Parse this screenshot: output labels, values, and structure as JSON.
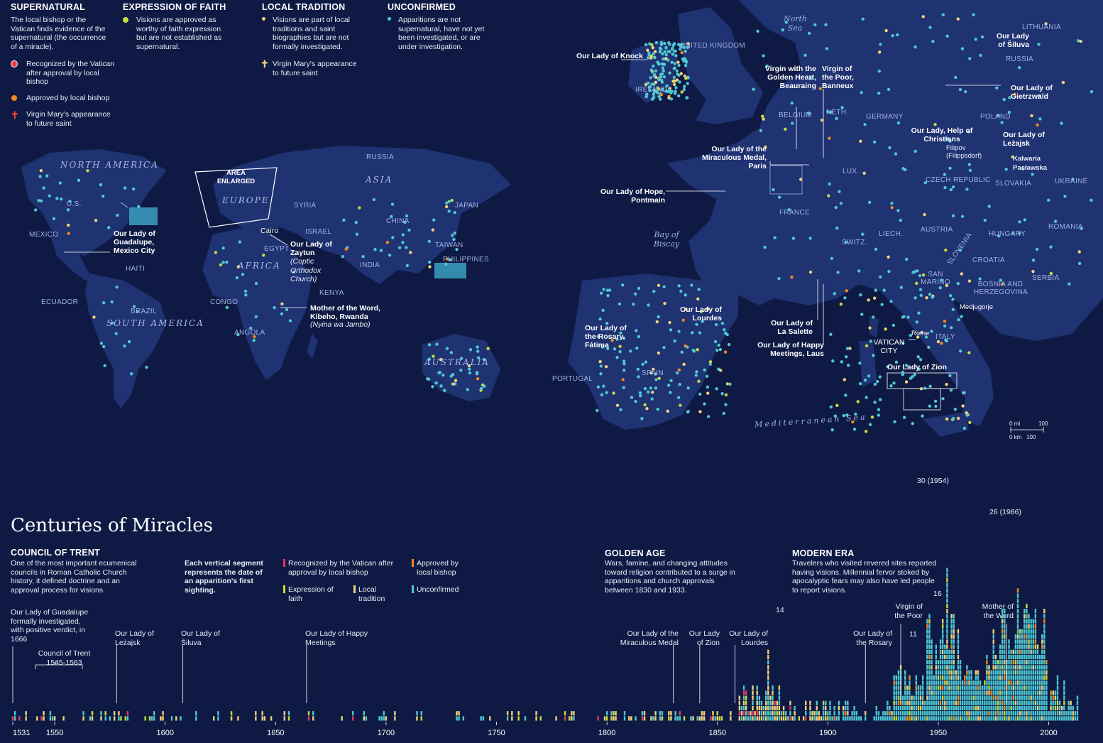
{
  "legend": {
    "supernatural": {
      "heading": "SUPERNATURAL",
      "desc": "The local bishop or the Vatican finds evidence of the supernatural (the occurrence of a miracle).",
      "items": [
        {
          "label": "Recognized by the Vatican after approval by local bishop",
          "color": "#e8403a"
        },
        {
          "label": "Approved by local bishop",
          "color": "#f08a24"
        },
        {
          "label": "Virgin Mary's appearance to future saint",
          "color": "#e8403a"
        }
      ]
    },
    "faith": {
      "heading": "EXPRESSION OF FAITH",
      "desc": "Visions are approved as worthy of faith expression but are not established as supernatural.",
      "color": "#c8dc3a"
    },
    "tradition": {
      "heading": "LOCAL TRADITION",
      "desc": "Visions are part of local traditions and saint biographies but are not formally investigated.",
      "color": "#f3d27a",
      "saint_label": "Virgin Mary's appearance to future saint"
    },
    "unconfirmed": {
      "heading": "UNCONFIRMED",
      "desc": "Apparitions are not supernatural, have not yet been investigated, or are under investigation.",
      "color": "#4ec9d0"
    }
  },
  "world_map": {
    "continents": [
      "NORTH AMERICA",
      "SOUTH AMERICA",
      "EUROPE",
      "AFRICA",
      "ASIA",
      "AUSTRALIA"
    ],
    "area_label": "AREA ENLARGED",
    "countries": [
      "RUSSIA",
      "U.S.",
      "MEXICO",
      "HAITI",
      "ECUADOR",
      "BRAZIL",
      "CONGO",
      "ANGOLA",
      "KENYA",
      "EGYPT",
      "SYRIA",
      "ISRAEL",
      "Cairo",
      "INDIA",
      "CHINA",
      "JAPAN",
      "TAIWAN",
      "PHILIPPINES"
    ],
    "callouts": {
      "guadalupe": "Our Lady of Guadalupe, Mexico City",
      "zaytun": "Our Lady of Zaytun",
      "zaytun_note": "(Coptic Orthodox Church)",
      "kibeho": "Mother of the Word, Kibeho, Rwanda",
      "kibeho_note": "(Nyina wa Jambo)"
    }
  },
  "europe_map": {
    "seas": [
      "North Sea",
      "Bay of Biscay",
      "Mediterranean Sea"
    ],
    "countries": [
      "UNITED KINGDOM",
      "IRELAND",
      "BELGIUM",
      "NETH.",
      "LUX.",
      "GERMANY",
      "POLAND",
      "FRANCE",
      "SWITZ.",
      "LIECH.",
      "AUSTRIA",
      "CZECH REPUBLIC",
      "SLOVAKIA",
      "UKRAINE",
      "HUNGARY",
      "ROMANIA",
      "SLOVENIA",
      "CROATIA",
      "SERBIA",
      "BOSNIA AND HERZEGOVINA",
      "SAN MARINO",
      "ITALY",
      "SPAIN",
      "PORTUGAL",
      "LITHUANIA",
      "RUSSIA",
      "VATICAN CITY",
      "Rome",
      "Medjugorje"
    ],
    "callouts": {
      "knock": "Our Lady of Knock",
      "beauraing": "Virgin with the Golden Heart, Beauraing",
      "banneux": "Virgin of the Poor, Banneux",
      "paris": "Our Lady of the Miraculous Medal, Paris",
      "pontmain": "Our Lady of Hope, Pontmain",
      "siluva": "Our Lady of Šiluva",
      "gietrzwald": "Our Lady of Gietrzwald",
      "filipov_title": "Our Lady, Help of Christians",
      "filipov": "Filipov",
      "filipov_note": "(Filippsdorf)",
      "lezajsk": "Our Lady of Leżajsk",
      "kalwaria": "Kalwaria Pacławska",
      "lourdes": "Our Lady of Lourdes",
      "lasalette": "Our Lady of La Salette",
      "laus": "Our Lady of Happy Meetings, Laus",
      "fatima": "Our Lady of the Rosary, Fátima",
      "zion": "Our Lady of Zion"
    },
    "scale": {
      "mi": "0 mi",
      "mi_val": "100",
      "km": "0 km",
      "km_val": "100"
    }
  },
  "timeline": {
    "title": "Centuries of Miracles",
    "sections": {
      "trent": {
        "heading": "COUNCIL OF TRENT",
        "text": "One of the most important ecumenical councils in Roman Catholic Church history, it defined doctrine and an approval process for visions."
      },
      "segment": {
        "text": "Each vertical segment represents the date of an apparition's first sighting."
      },
      "golden": {
        "heading": "GOLDEN AGE",
        "text": "Wars, famine, and changing attitudes toward religion contributed to a surge in apparitions and church approvals between 1830 and 1933."
      },
      "modern": {
        "heading": "MODERN ERA",
        "text": "Travelers who visited revered sites reported having visions. Millennial fervor stoked by apocalyptic fears may also have led people to report visions."
      }
    },
    "legend": [
      {
        "label": "Recognized by the Vatican after approval by local bishop",
        "color": "#e23a64"
      },
      {
        "label": "Approved by local bishop",
        "color": "#f08a24"
      },
      {
        "label": "Expression of faith",
        "color": "#c8dc3a"
      },
      {
        "label": "Local tradition",
        "color": "#f3d27a"
      },
      {
        "label": "Unconfirmed",
        "color": "#4ec9d0"
      }
    ],
    "annotations": {
      "guadalupe": "Our Lady of Guadalupe formally investigated, with positive verdict, in 1666",
      "trent_span": "Council of Trent 1545-1563",
      "lezajsk": "Our Lady of Leżajsk",
      "siluva": "Our Lady of Šiluva",
      "laus": "Our Lady of Happy Meetings",
      "medal": "Our Lady of the Miraculous Medal",
      "zion": "Our Lady of Zion",
      "lourdes": "Our Lady of Lourdes",
      "rosary": "Our Lady of the Rosary",
      "poor": "Virgin of the Poor",
      "word": "Mother of the Word",
      "peak1954": "30 (1954)",
      "peak1986": "26 (1986)",
      "n14": "14",
      "n16": "16",
      "n11": "11"
    },
    "axis_ticks": [
      "1531",
      "1550",
      "1600",
      "1650",
      "1700",
      "1750",
      "1800",
      "1850",
      "1900",
      "1950",
      "2000"
    ]
  },
  "chart_data": {
    "type": "bar",
    "title": "Centuries of Miracles",
    "xlabel": "",
    "ylabel": "",
    "labeled_values": [
      {
        "year": 1954,
        "count": 30
      },
      {
        "year": 1986,
        "count": 26
      },
      {
        "year": 1947,
        "count": 16
      },
      {
        "year": 1873,
        "count": 14
      },
      {
        "year": 1933,
        "count": 11
      }
    ],
    "series": [
      {
        "name": "Recognized by the Vatican after approval by local bishop",
        "color": "#e23a64"
      },
      {
        "name": "Approved by local bishop",
        "color": "#f08a24"
      },
      {
        "name": "Expression of faith",
        "color": "#c8dc3a"
      },
      {
        "name": "Local tradition",
        "color": "#f3d27a"
      },
      {
        "name": "Unconfirmed",
        "color": "#4ec9d0"
      }
    ],
    "xlim": [
      1531,
      2013
    ]
  }
}
